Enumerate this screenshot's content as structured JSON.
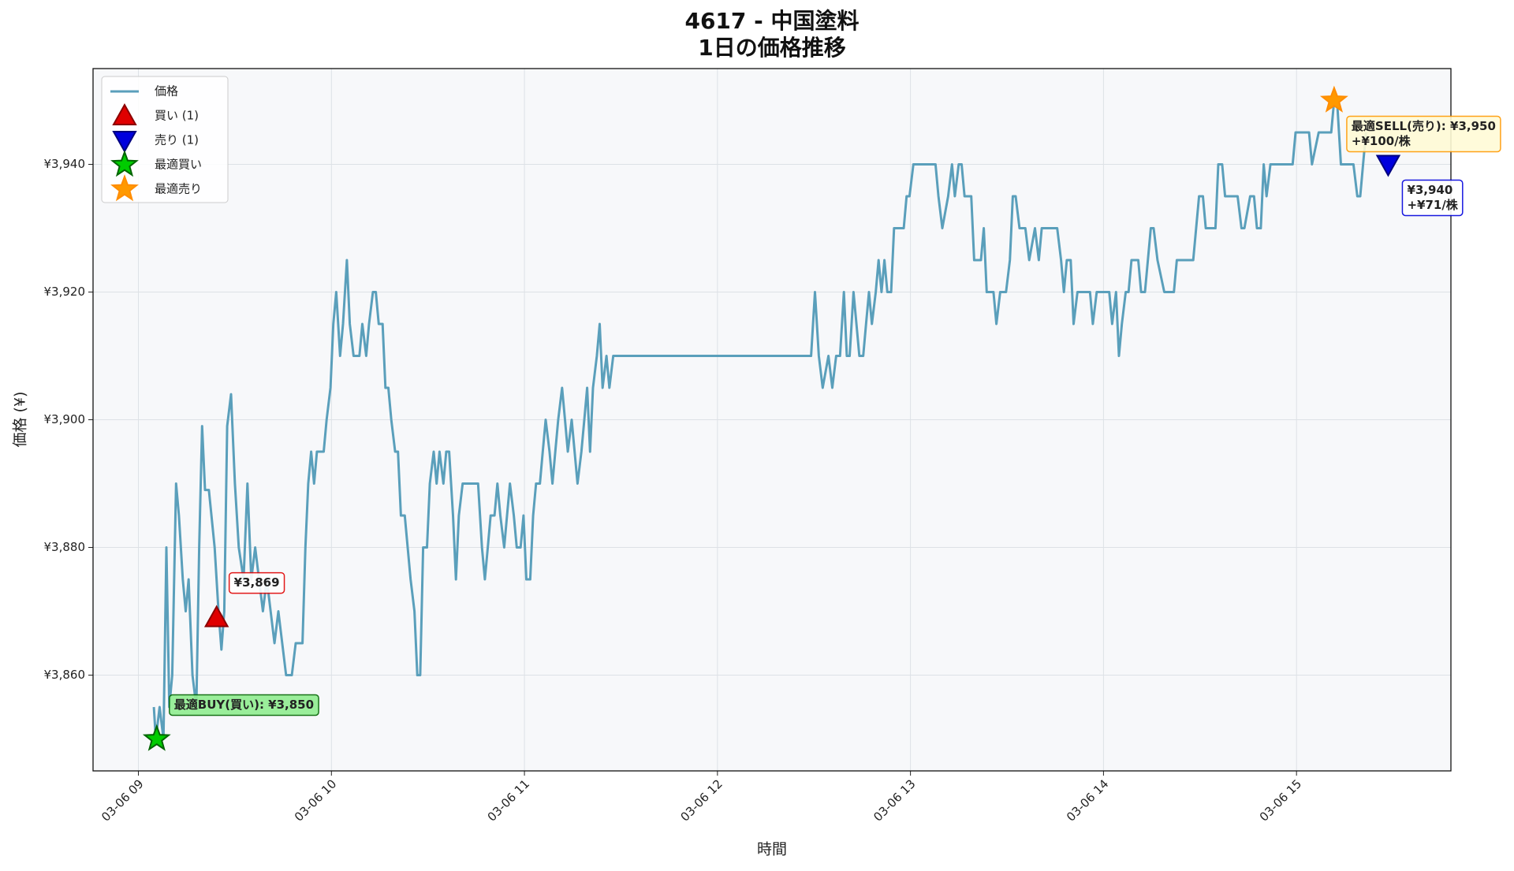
{
  "chart_data": {
    "type": "line",
    "title": "4617 - 中国塗料",
    "subtitle": "1日の価格推移",
    "x_label": "時間",
    "y_label": "価格 (¥)",
    "xlim": [
      8.765,
      15.8
    ],
    "ylim": [
      3845,
      3955
    ],
    "grid": true,
    "legend": "upper left",
    "xticks": [
      {
        "value": 9,
        "label": "03-06 09"
      },
      {
        "value": 10,
        "label": "03-06 10"
      },
      {
        "value": 11,
        "label": "03-06 11"
      },
      {
        "value": 12,
        "label": "03-06 12"
      },
      {
        "value": 13,
        "label": "03-06 13"
      },
      {
        "value": 14,
        "label": "03-06 14"
      },
      {
        "value": 15,
        "label": "03-06 15"
      }
    ],
    "yticks": [
      {
        "value": 3860,
        "label": "¥3,860"
      },
      {
        "value": 3880,
        "label": "¥3,880"
      },
      {
        "value": 3900,
        "label": "¥3,900"
      },
      {
        "value": 3920,
        "label": "¥3,920"
      },
      {
        "value": 3940,
        "label": "¥3,940"
      }
    ],
    "series": [
      {
        "name": "価格",
        "mark": "line",
        "color": "#5a9fbb",
        "x": [
          9.08,
          9.09,
          9.11,
          9.13,
          9.145,
          9.16,
          9.175,
          9.195,
          9.21,
          9.23,
          9.245,
          9.26,
          9.28,
          9.3,
          9.315,
          9.33,
          9.345,
          9.365,
          9.395,
          9.415,
          9.43,
          9.445,
          9.46,
          9.48,
          9.5,
          9.52,
          9.545,
          9.565,
          9.585,
          9.605,
          9.625,
          9.645,
          9.665,
          9.685,
          9.705,
          9.725,
          9.745,
          9.765,
          9.795,
          9.815,
          9.85,
          9.865,
          9.88,
          9.895,
          9.91,
          9.925,
          9.96,
          9.975,
          9.995,
          10.01,
          10.025,
          10.045,
          10.06,
          10.08,
          10.095,
          10.115,
          10.145,
          10.16,
          10.18,
          10.195,
          10.215,
          10.23,
          10.245,
          10.265,
          10.28,
          10.295,
          10.31,
          10.33,
          10.345,
          10.36,
          10.38,
          10.395,
          10.41,
          10.43,
          10.445,
          10.46,
          10.475,
          10.495,
          10.51,
          10.53,
          10.545,
          10.56,
          10.58,
          10.595,
          10.61,
          10.63,
          10.645,
          10.66,
          10.68,
          10.76,
          10.78,
          10.795,
          10.81,
          10.825,
          10.845,
          10.86,
          10.875,
          10.895,
          10.91,
          10.925,
          10.945,
          10.96,
          10.98,
          10.995,
          11.01,
          11.03,
          11.045,
          11.06,
          11.08,
          11.095,
          11.11,
          11.13,
          11.145,
          11.16,
          11.175,
          11.195,
          11.21,
          11.225,
          11.245,
          11.26,
          11.275,
          11.295,
          11.31,
          11.325,
          11.34,
          11.355,
          11.375,
          11.39,
          11.405,
          11.425,
          11.44,
          11.46,
          12.485,
          12.505,
          12.525,
          12.545,
          12.575,
          12.595,
          12.615,
          12.635,
          12.655,
          12.67,
          12.685,
          12.705,
          12.72,
          12.735,
          12.755,
          12.77,
          12.785,
          12.8,
          12.82,
          12.835,
          12.85,
          12.865,
          12.88,
          12.9,
          12.915,
          12.965,
          12.98,
          12.995,
          13.015,
          13.13,
          13.145,
          13.165,
          13.195,
          13.215,
          13.23,
          13.25,
          13.265,
          13.28,
          13.315,
          13.33,
          13.365,
          13.38,
          13.395,
          13.43,
          13.445,
          13.465,
          13.495,
          13.515,
          13.53,
          13.545,
          13.565,
          13.595,
          13.615,
          13.645,
          13.665,
          13.68,
          13.76,
          13.78,
          13.795,
          13.81,
          13.83,
          13.845,
          13.865,
          13.93,
          13.945,
          13.965,
          14.03,
          14.045,
          14.065,
          14.08,
          14.095,
          14.115,
          14.13,
          14.145,
          14.18,
          14.195,
          14.215,
          14.23,
          14.245,
          14.26,
          14.28,
          14.315,
          14.365,
          14.38,
          14.465,
          14.48,
          14.495,
          14.515,
          14.53,
          14.58,
          14.595,
          14.615,
          14.63,
          14.695,
          14.715,
          14.73,
          14.76,
          14.78,
          14.795,
          14.815,
          14.83,
          14.845,
          14.865,
          14.98,
          14.995,
          15.065,
          15.08,
          15.115,
          15.18,
          15.195,
          15.21,
          15.23,
          15.295,
          15.315,
          15.33,
          15.345,
          15.36
        ],
        "values": [
          3855,
          3850,
          3855,
          3850,
          3880,
          3855,
          3860,
          3890,
          3885,
          3875,
          3870,
          3875,
          3860,
          3855,
          3880,
          3899,
          3889,
          3889,
          3880,
          3870,
          3864,
          3870,
          3899,
          3904,
          3890,
          3880,
          3875,
          3890,
          3875,
          3880,
          3875,
          3870,
          3875,
          3870,
          3865,
          3870,
          3865,
          3860,
          3860,
          3865,
          3865,
          3880,
          3890,
          3895,
          3890,
          3895,
          3895,
          3900,
          3905,
          3915,
          3920,
          3910,
          3915,
          3925,
          3915,
          3910,
          3910,
          3915,
          3910,
          3915,
          3920,
          3920,
          3915,
          3915,
          3905,
          3905,
          3900,
          3895,
          3895,
          3885,
          3885,
          3880,
          3875,
          3870,
          3860,
          3860,
          3880,
          3880,
          3890,
          3895,
          3890,
          3895,
          3890,
          3895,
          3895,
          3885,
          3875,
          3885,
          3890,
          3890,
          3880,
          3875,
          3880,
          3885,
          3885,
          3890,
          3885,
          3880,
          3885,
          3890,
          3885,
          3880,
          3880,
          3885,
          3875,
          3875,
          3885,
          3890,
          3890,
          3895,
          3900,
          3895,
          3890,
          3895,
          3900,
          3905,
          3900,
          3895,
          3900,
          3895,
          3890,
          3895,
          3900,
          3905,
          3895,
          3905,
          3910,
          3915,
          3905,
          3910,
          3905,
          3910,
          3910,
          3920,
          3910,
          3905,
          3910,
          3905,
          3910,
          3910,
          3920,
          3910,
          3910,
          3920,
          3915,
          3910,
          3910,
          3915,
          3920,
          3915,
          3920,
          3925,
          3920,
          3925,
          3920,
          3920,
          3930,
          3930,
          3935,
          3935,
          3940,
          3940,
          3935,
          3930,
          3935,
          3940,
          3935,
          3940,
          3940,
          3935,
          3935,
          3925,
          3925,
          3930,
          3920,
          3920,
          3915,
          3920,
          3920,
          3925,
          3935,
          3935,
          3930,
          3930,
          3925,
          3930,
          3925,
          3930,
          3930,
          3925,
          3920,
          3925,
          3925,
          3915,
          3920,
          3920,
          3915,
          3920,
          3920,
          3915,
          3920,
          3910,
          3915,
          3920,
          3920,
          3925,
          3925,
          3920,
          3920,
          3925,
          3930,
          3930,
          3925,
          3920,
          3920,
          3925,
          3925,
          3930,
          3935,
          3935,
          3930,
          3930,
          3940,
          3940,
          3935,
          3935,
          3930,
          3930,
          3935,
          3935,
          3930,
          3930,
          3940,
          3935,
          3940,
          3940,
          3945,
          3945,
          3940,
          3945,
          3945,
          3950,
          3950,
          3940,
          3940,
          3935,
          3935,
          3940,
          3945
        ]
      },
      {
        "name": "買い (1)",
        "mark": "triangle-up",
        "color": "#e00000",
        "x": [
          9.405
        ],
        "values": [
          3869
        ],
        "value_labels": [
          "¥3,869"
        ]
      },
      {
        "name": "売り (1)",
        "mark": "triangle-down",
        "color": "#0000dd",
        "x": [
          15.475
        ],
        "values": [
          3940
        ],
        "value_labels": [
          "¥3,940"
        ],
        "sublabels": [
          "+¥71/株"
        ]
      },
      {
        "name": "最適買い",
        "mark": "star",
        "color": "#00cc00",
        "x": [
          9.095
        ],
        "values": [
          3850
        ],
        "value_labels": [
          "最適BUY(買い): ¥3,850"
        ]
      },
      {
        "name": "最適売り",
        "mark": "star",
        "color": "#ff9900",
        "x": [
          15.195
        ],
        "values": [
          3950
        ],
        "value_labels": [
          "最適SELL(売り): ¥3,950"
        ],
        "sublabels": [
          "+¥100/株"
        ]
      }
    ]
  }
}
